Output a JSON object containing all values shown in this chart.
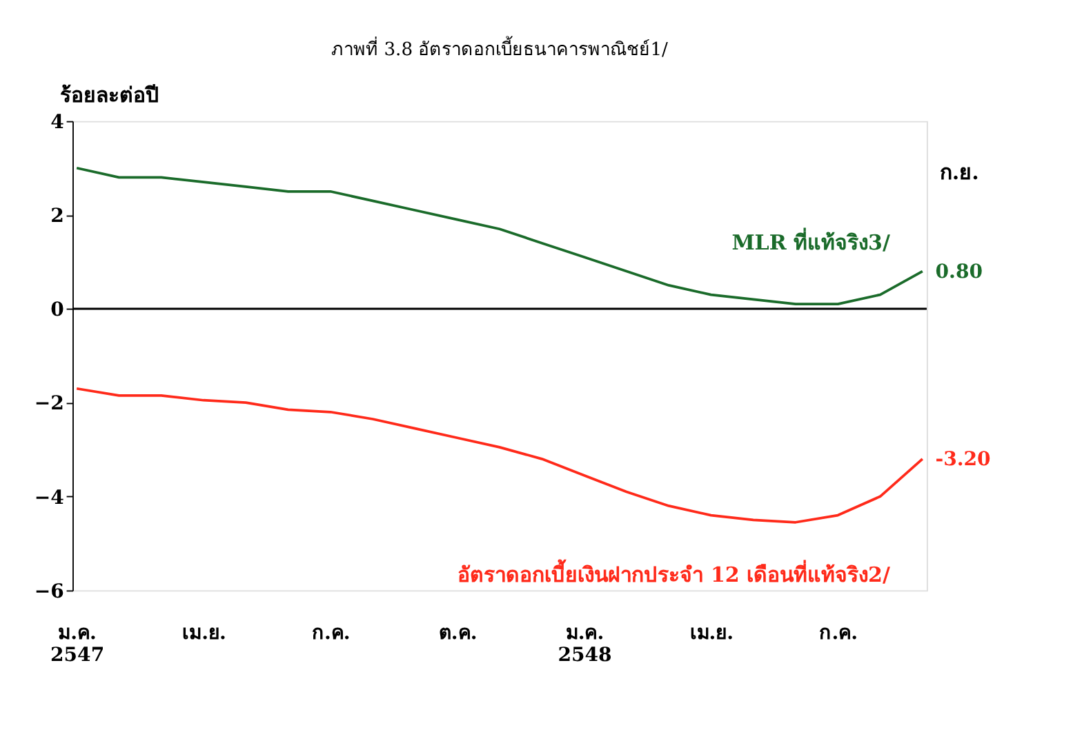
{
  "chart_data": {
    "type": "line",
    "title": "ภาพที่ 3.8  อัตราดอกเบี้ยธนาคารพาณิชย์1/",
    "ylabel": "ร้อยละต่อปี",
    "categories": [
      "ม.ค.\n2547",
      null,
      null,
      "เม.ย.",
      null,
      null,
      "ก.ค.",
      null,
      null,
      "ต.ค.",
      null,
      null,
      "ม.ค.\n2548",
      null,
      null,
      "เม.ย.",
      null,
      null,
      "ก.ค.",
      null,
      null
    ],
    "series": [
      {
        "name": "MLR ที่แท้จริง3/",
        "color": "#1a6b2a",
        "values": [
          3.0,
          2.8,
          2.8,
          2.7,
          2.6,
          2.5,
          2.5,
          2.3,
          2.1,
          1.9,
          1.7,
          1.4,
          1.1,
          0.8,
          0.5,
          0.3,
          0.2,
          0.1,
          0.1,
          0.3,
          0.8
        ],
        "value_labels": [
          null,
          null,
          null,
          null,
          null,
          null,
          null,
          null,
          null,
          null,
          null,
          null,
          null,
          null,
          null,
          null,
          null,
          null,
          null,
          null,
          "0.80"
        ]
      },
      {
        "name": "อัตราดอกเบี้ยเงินฝากประจำ 12 เดือนที่แท้จริง2/",
        "color": "#ff2a1a",
        "values": [
          -1.7,
          -1.85,
          -1.85,
          -1.95,
          -2.0,
          -2.15,
          -2.2,
          -2.35,
          -2.55,
          -2.75,
          -2.95,
          -3.2,
          -3.55,
          -3.9,
          -4.2,
          -4.4,
          -4.5,
          -4.55,
          -4.4,
          -4.0,
          -3.2
        ],
        "value_labels": [
          null,
          null,
          null,
          null,
          null,
          null,
          null,
          null,
          null,
          null,
          null,
          null,
          null,
          null,
          null,
          null,
          null,
          null,
          null,
          null,
          "-3.20"
        ]
      }
    ],
    "ylim": [
      -6,
      4
    ],
    "yticks": [
      -6,
      -4,
      -2,
      0,
      2,
      4
    ],
    "ref_lines": [
      {
        "axis": "y",
        "value": 0,
        "color": "#000000"
      }
    ],
    "annotations": [
      "ก.ย."
    ],
    "grid": false,
    "marker": "none",
    "line_style": "solid"
  }
}
